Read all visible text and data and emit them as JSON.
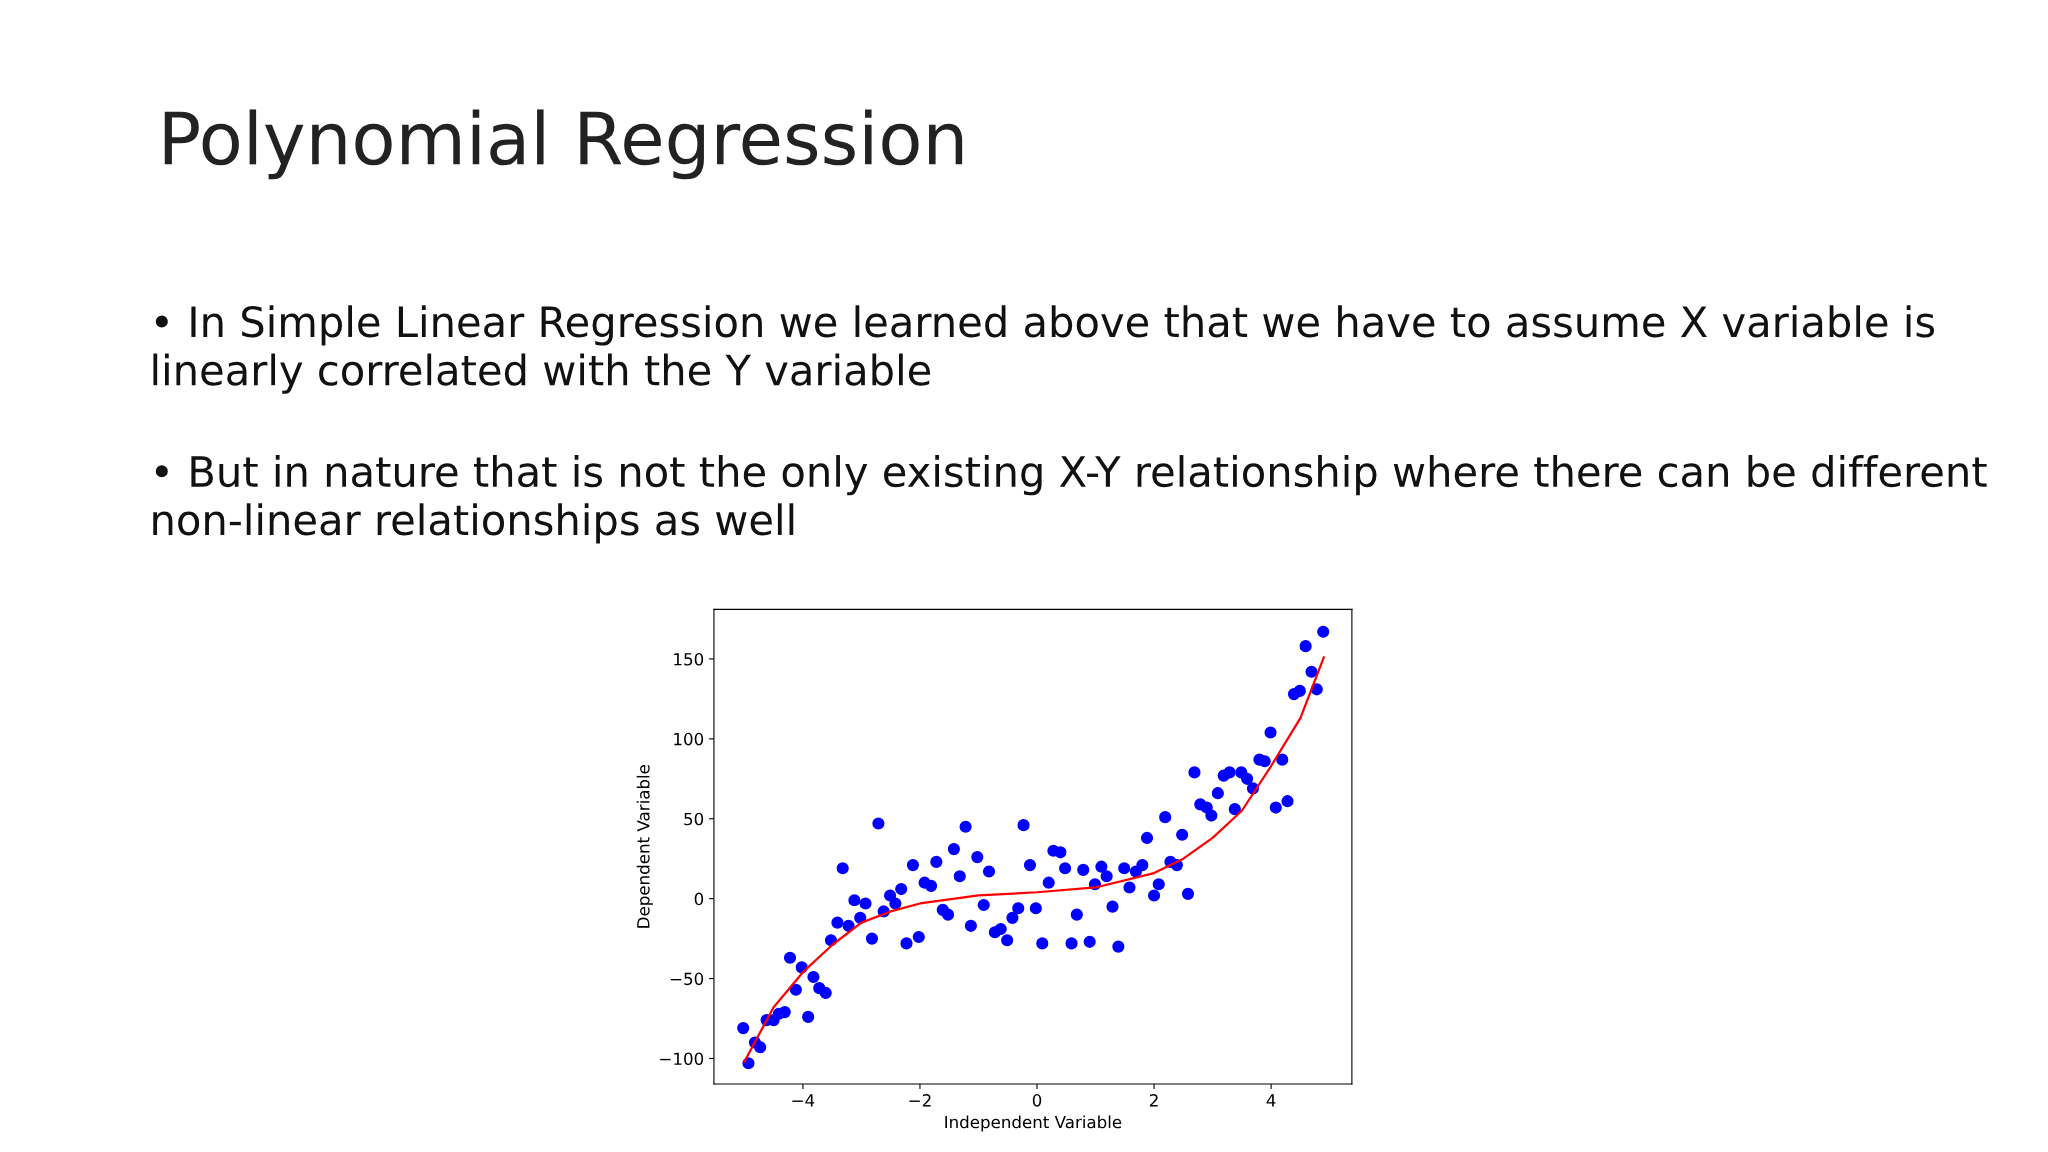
{
  "chart_data": {
    "type": "scatter",
    "title": "Polynomial Regression",
    "annotations": [
      "• In Simple Linear Regression we learned above that we have to assume X variable is linearly correlated with the Y variable",
      "• But in nature that is not the only existing X-Y relationship where there can be different non-linear relationships as well"
    ],
    "xlabel": "Independent Variable",
    "ylabel": "Dependent Variable",
    "xlim": [
      -5.52,
      5.38
    ],
    "ylim": [
      -116,
      181
    ],
    "xticks": [
      {
        "value": -4,
        "label": "−4"
      },
      {
        "value": -2,
        "label": "−2"
      },
      0,
      2,
      4
    ],
    "yticks": [
      {
        "value": -100,
        "label": "−100"
      },
      {
        "value": -50,
        "label": "−50"
      },
      0,
      50,
      100,
      150
    ],
    "grid": false,
    "legend": false,
    "series": [
      {
        "color": "#0000ff",
        "marker": "circle",
        "x": [
          -5.02,
          -4.93,
          -4.82,
          -4.73,
          -4.62,
          -4.5,
          -4.41,
          -4.31,
          -4.22,
          -4.12,
          -4.02,
          -3.91,
          -3.82,
          -3.72,
          -3.61,
          -3.52,
          -3.41,
          -3.32,
          -3.22,
          -3.12,
          -3.02,
          -2.93,
          -2.82,
          -2.71,
          -2.62,
          -2.51,
          -2.42,
          -2.32,
          -2.23,
          -2.12,
          -2.02,
          -1.92,
          -1.81,
          -1.72,
          -1.61,
          -1.52,
          -1.42,
          -1.32,
          -1.22,
          -1.13,
          -1.02,
          -0.91,
          -0.82,
          -0.72,
          -0.62,
          -0.51,
          -0.42,
          -0.32,
          -0.23,
          -0.12,
          -0.02,
          0.09,
          0.2,
          0.28,
          0.4,
          0.48,
          0.59,
          0.68,
          0.79,
          0.9,
          0.99,
          1.1,
          1.19,
          1.29,
          1.39,
          1.49,
          1.58,
          1.69,
          1.8,
          1.88,
          2.0,
          2.08,
          2.19,
          2.28,
          2.39,
          2.48,
          2.58,
          2.69,
          2.79,
          2.9,
          2.98,
          3.09,
          3.19,
          3.29,
          3.38,
          3.49,
          3.59,
          3.69,
          3.8,
          3.89,
          3.99,
          4.08,
          4.19,
          4.28,
          4.39,
          4.49,
          4.59,
          4.69,
          4.78,
          4.89
        ],
        "values": [
          -81,
          -103,
          -90,
          -93,
          -76,
          -76,
          -72,
          -71,
          -37,
          -57,
          -43,
          -74,
          -49,
          -56,
          -59,
          -26,
          -15,
          19,
          -17,
          -1,
          -12,
          -3,
          -25,
          47,
          -8,
          2,
          -3,
          6,
          -28,
          21,
          -24,
          10,
          8,
          23,
          -7,
          -10,
          31,
          14,
          45,
          -17,
          26,
          -4,
          17,
          -21,
          -19,
          -26,
          -12,
          -6,
          46,
          21,
          -6,
          -28,
          10,
          30,
          29,
          19,
          -28,
          -10,
          18,
          -27,
          9,
          20,
          14,
          -5,
          -30,
          19,
          7,
          17,
          21,
          38,
          2,
          9,
          51,
          23,
          21,
          40,
          3,
          79,
          59,
          57,
          52,
          66,
          77,
          79,
          56,
          79,
          75,
          69,
          87,
          86,
          104,
          57,
          87,
          61,
          128,
          130,
          158,
          142,
          131,
          167
        ]
      },
      {
        "type": "line",
        "color": "#ff0000",
        "marker": "none",
        "line_style": "solid",
        "x": [
          -5.0,
          -4.5,
          -4.0,
          -3.5,
          -3.0,
          -2.5,
          -2.0,
          -1.0,
          0.0,
          1.0,
          2.0,
          2.5,
          3.0,
          3.5,
          4.0,
          4.5,
          4.9
        ],
        "values": [
          -102,
          -68,
          -46,
          -29,
          -15,
          -8,
          -3,
          2,
          4,
          7,
          16,
          25,
          38,
          55,
          83,
          113,
          151
        ]
      }
    ]
  }
}
